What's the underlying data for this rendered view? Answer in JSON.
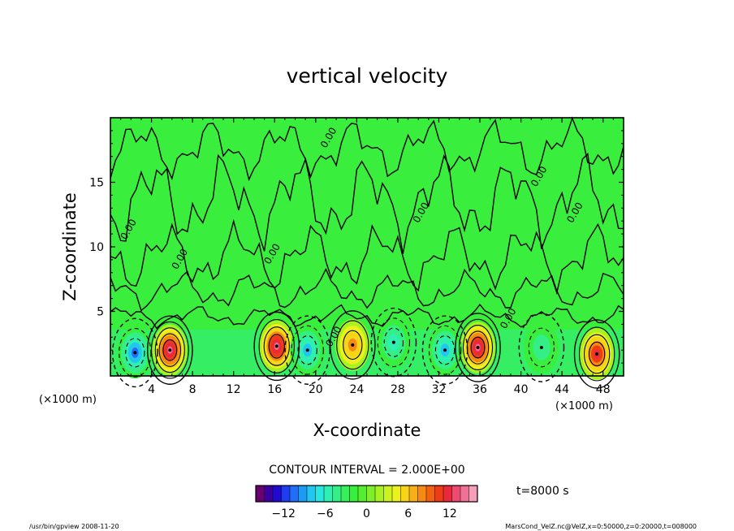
{
  "chart_data": {
    "type": "heatmap",
    "title": "vertical velocity",
    "xlabel": "X-coordinate",
    "ylabel": "Z-coordinate",
    "x_unit": "(×1000 m)",
    "x_unit_right": "(×1000 m)",
    "xlim": [
      0,
      50
    ],
    "ylim": [
      0,
      20
    ],
    "x_ticks": [
      4,
      8,
      12,
      16,
      20,
      24,
      28,
      32,
      36,
      40,
      44,
      48
    ],
    "y_ticks": [
      5,
      10,
      15
    ],
    "contour_interval_text": "CONTOUR INTERVAL = 2.000E+00",
    "time_label": "t=8000 s",
    "colorbar": {
      "min": -16,
      "max": 16,
      "ticks": [
        -12,
        -6,
        0,
        6,
        12
      ],
      "colors": [
        "#6a006e",
        "#3a00a0",
        "#1d0bd0",
        "#1e3df0",
        "#1f6ef5",
        "#1d9bf2",
        "#22c7f0",
        "#2ae6e0",
        "#2ef0b0",
        "#33ef85",
        "#37ef5c",
        "#39ee3c",
        "#54ee2e",
        "#7ef029",
        "#a8f224",
        "#ccf31f",
        "#ecf01c",
        "#f8d418",
        "#f8b014",
        "#f68a12",
        "#f26212",
        "#ee3c16",
        "#ea2a3a",
        "#ee4a70",
        "#f07098",
        "#f4a0b8"
      ]
    },
    "centers": [
      {
        "x": 5.8,
        "z": 2.0,
        "w": 14,
        "label": "updraft"
      },
      {
        "x": 16.2,
        "z": 2.3,
        "w": 13,
        "label": "updraft"
      },
      {
        "x": 23.6,
        "z": 2.4,
        "w": 7,
        "label": "updraft"
      },
      {
        "x": 35.8,
        "z": 2.2,
        "w": 14,
        "label": "updraft"
      },
      {
        "x": 47.4,
        "z": 1.7,
        "w": 11,
        "label": "updraft"
      },
      {
        "x": 2.4,
        "z": 1.8,
        "w": -9,
        "label": "downdraft"
      },
      {
        "x": 19.2,
        "z": 2.0,
        "w": -8,
        "label": "downdraft"
      },
      {
        "x": 27.6,
        "z": 2.6,
        "w": -6,
        "label": "downdraft"
      },
      {
        "x": 32.6,
        "z": 2.0,
        "w": -7,
        "label": "downdraft"
      },
      {
        "x": 42.0,
        "z": 2.2,
        "w": -4,
        "label": "downdraft"
      }
    ],
    "zero_contour_labels": [
      "0.00",
      "0.00",
      "0.00",
      "0.00",
      "0.00",
      "0.00",
      "0.00",
      "0.00",
      "0.00"
    ]
  },
  "footer": {
    "left": "/usr/bin/gpview   2008-11-20",
    "right": "MarsCond_VelZ.nc@VelZ,x=0:50000,z=0:20000,t=008000"
  }
}
